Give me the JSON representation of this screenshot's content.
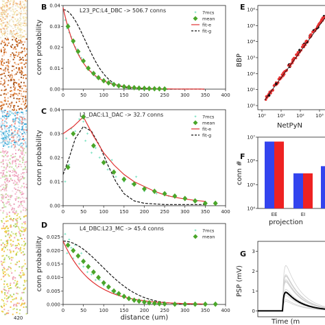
{
  "colors": {
    "points": "#7fe3c4",
    "mean": "#4aa62a",
    "fit_e": "#e03030",
    "fit_g": "#111111",
    "bar_blue": "#3344ee",
    "bar_red": "#ee2222",
    "scatter_red": "#e63030",
    "psp_trace": "#cfcfcf"
  },
  "panel_a": {
    "tick_label": "420"
  },
  "chart_data": [
    {
      "panel": "B",
      "type": "line",
      "title": "L23_PC:L4_DBC -> 506.7 conns",
      "xlabel": "",
      "ylabel": "conn probability",
      "xlim": [
        0,
        400
      ],
      "ylim": [
        0,
        0.04
      ],
      "xticks": [
        "0",
        "50",
        "100",
        "150",
        "200",
        "250",
        "300",
        "350",
        "400"
      ],
      "yticks": [
        "0.00",
        "0.01",
        "0.02",
        "0.03",
        "0.04"
      ],
      "legend": [
        "7mcs",
        "mean",
        "fit-e",
        "fit-g"
      ],
      "legend_position": "top-right",
      "mean_x": [
        12,
        25,
        37,
        50,
        62,
        75,
        87,
        100,
        112,
        125,
        137,
        150,
        162,
        175,
        187,
        200,
        212,
        225,
        237,
        250
      ],
      "mean_y": [
        0.03,
        0.023,
        0.018,
        0.0135,
        0.01,
        0.0075,
        0.0055,
        0.004,
        0.003,
        0.0022,
        0.0016,
        0.0012,
        0.0009,
        0.0007,
        0.0005,
        0.0004,
        0.0003,
        0.0002,
        0.00015,
        0.0001
      ],
      "fit_e": {
        "a": 0.039,
        "tau": 44,
        "offset": 0.0
      },
      "fit_g": {
        "a": 0.038,
        "mu": 0,
        "sigma": 55
      },
      "points_x": [
        5,
        10,
        12,
        15,
        20,
        25,
        30,
        35,
        40,
        45,
        50,
        60,
        70,
        80,
        90,
        100,
        120,
        140,
        160
      ],
      "points_y": [
        0.033,
        0.029,
        0.031,
        0.027,
        0.025,
        0.022,
        0.02,
        0.019,
        0.016,
        0.015,
        0.013,
        0.01,
        0.008,
        0.006,
        0.005,
        0.004,
        0.003,
        0.002,
        0.001
      ]
    },
    {
      "panel": "C",
      "type": "line",
      "title": "L1_DAC:L1_DAC -> 32.7 conns",
      "xlabel": "",
      "ylabel": "conn probability",
      "xlim": [
        0,
        400
      ],
      "ylim": [
        0,
        0.04
      ],
      "xticks": [
        "0",
        "50",
        "100",
        "150",
        "200",
        "250",
        "300",
        "350",
        "400"
      ],
      "yticks": [
        "0.00",
        "0.01",
        "0.02",
        "0.03",
        "0.04"
      ],
      "legend": [
        "7mcs",
        "mean",
        "fit-e",
        "fit-g"
      ],
      "legend_position": "top-right",
      "mean_x": [
        12,
        25,
        50,
        75,
        100,
        125,
        150,
        175,
        200,
        225,
        250,
        275,
        300,
        325,
        350,
        375
      ],
      "mean_y": [
        0.016,
        0.03,
        0.037,
        0.025,
        0.018,
        0.014,
        0.011,
        0.009,
        0.007,
        0.006,
        0.005,
        0.004,
        0.003,
        0.002,
        0.001,
        0.001
      ],
      "fit_e_points": [
        [
          0,
          0.03
        ],
        [
          25,
          0.033
        ],
        [
          50,
          0.037
        ],
        [
          75,
          0.029
        ],
        [
          100,
          0.022
        ],
        [
          125,
          0.017
        ],
        [
          150,
          0.013
        ],
        [
          175,
          0.01
        ],
        [
          200,
          0.008
        ],
        [
          225,
          0.006
        ],
        [
          250,
          0.0045
        ],
        [
          275,
          0.0035
        ],
        [
          300,
          0.0028
        ],
        [
          325,
          0.0022
        ],
        [
          350,
          0.0018
        ]
      ],
      "fit_g_points": [
        [
          0,
          0.013
        ],
        [
          15,
          0.02
        ],
        [
          30,
          0.028
        ],
        [
          50,
          0.033
        ],
        [
          70,
          0.031
        ],
        [
          90,
          0.025
        ],
        [
          110,
          0.017
        ],
        [
          130,
          0.01
        ],
        [
          150,
          0.005
        ],
        [
          175,
          0.002
        ],
        [
          200,
          0.001
        ],
        [
          250,
          0.0005
        ],
        [
          300,
          0.0005
        ],
        [
          350,
          0.0005
        ]
      ],
      "points_x": [
        5,
        8,
        15,
        20,
        30,
        40,
        50,
        55,
        60,
        70,
        80,
        90,
        100,
        110,
        120,
        130,
        150,
        170,
        180,
        200,
        230,
        260,
        300,
        330,
        350
      ],
      "points_y": [
        0.01,
        0.028,
        0.017,
        0.032,
        0.031,
        0.036,
        0.035,
        0.027,
        0.03,
        0.022,
        0.024,
        0.02,
        0.018,
        0.015,
        0.019,
        0.012,
        0.01,
        0.009,
        0.012,
        0.006,
        0.005,
        0.004,
        0.003,
        0.002,
        0.001
      ]
    },
    {
      "panel": "D",
      "type": "line",
      "title": "L4_DBC:L23_MC -> 45.4 conns",
      "xlabel": "distance (um)",
      "ylabel": "conn probability",
      "xlim": [
        0,
        400
      ],
      "ylim": [
        0,
        0.03
      ],
      "xticks": [
        "0",
        "50",
        "100",
        "150",
        "200",
        "250",
        "300",
        "350",
        "400"
      ],
      "yticks": [
        "0.000",
        "0.005",
        "0.010",
        "0.015",
        "0.020",
        "0.025"
      ],
      "legend": [
        "7mcs",
        "mean"
      ],
      "legend_position": "top-right",
      "mean_x": [
        12,
        25,
        37,
        50,
        62,
        75,
        87,
        100,
        112,
        125,
        137,
        150,
        162,
        175,
        187,
        200,
        212,
        225,
        237,
        250,
        275,
        300,
        325,
        350,
        375
      ],
      "mean_y": [
        0.022,
        0.02,
        0.018,
        0.016,
        0.014,
        0.012,
        0.01,
        0.008,
        0.0065,
        0.005,
        0.004,
        0.003,
        0.0022,
        0.0016,
        0.0012,
        0.0009,
        0.0006,
        0.0004,
        0.0003,
        0.0002,
        0.0001,
        0.0001,
        0.0001,
        0.0001,
        0.0001
      ],
      "fit_e": {
        "a": 0.0235,
        "tau": 70,
        "offset": 0.0
      },
      "fit_g": {
        "a": 0.0235,
        "mu": 0,
        "sigma": 95
      },
      "points_x": [
        5,
        10,
        15,
        20,
        25,
        30,
        35,
        40,
        45,
        50,
        60,
        70,
        80,
        90,
        100,
        110,
        120,
        130,
        140,
        150
      ],
      "points_y": [
        0.026,
        0.019,
        0.024,
        0.021,
        0.017,
        0.022,
        0.018,
        0.015,
        0.019,
        0.014,
        0.012,
        0.011,
        0.009,
        0.009,
        0.007,
        0.006,
        0.005,
        0.004,
        0.004,
        0.003
      ]
    },
    {
      "panel": "E",
      "type": "scatter",
      "xlabel": "NetPyN",
      "ylabel": "BBP",
      "log_scale": true,
      "xticks": [
        "10⁰",
        "10¹",
        "10²",
        "10³"
      ],
      "yticks": [
        "10⁰",
        "10¹",
        "10²",
        "10³",
        "10⁴",
        "10⁵",
        "10⁶"
      ],
      "diagonal": true
    },
    {
      "panel": "F",
      "type": "bar",
      "xlabel": "projection",
      "ylabel": "conn #",
      "log_scale": true,
      "yticks": [
        "10⁴",
        "10⁵",
        "10⁶",
        "10⁷"
      ],
      "categories": [
        "EE",
        "EI",
        ""
      ],
      "series": [
        {
          "values": [
            6500000,
            300000,
            600000
          ]
        },
        {
          "values": [
            6500000,
            300000,
            0
          ]
        }
      ]
    },
    {
      "panel": "G",
      "type": "line",
      "xlabel": "Time (m",
      "ylabel": "PSP (mV)",
      "ylim": [
        -0.3,
        3.5
      ],
      "yticks": [
        "0",
        "1",
        "2",
        "3"
      ]
    }
  ],
  "panel_letters": [
    "B",
    "C",
    "D",
    "E",
    "F",
    "G"
  ]
}
